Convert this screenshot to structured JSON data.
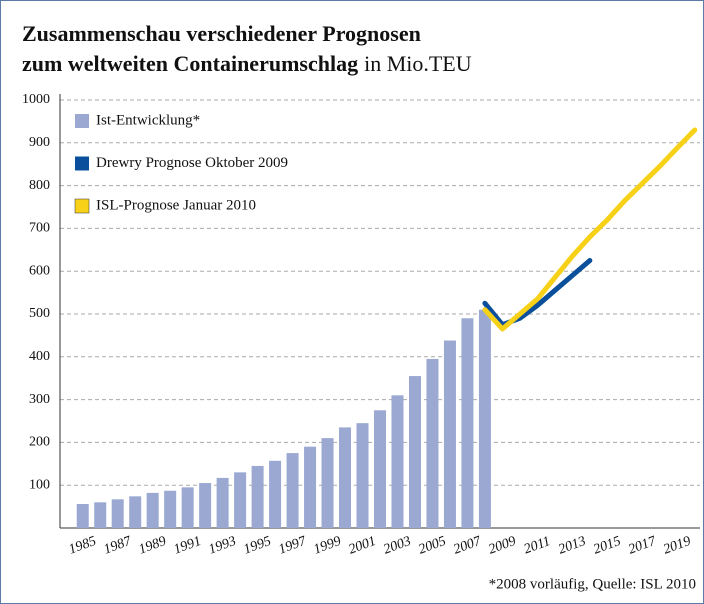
{
  "chart_data": {
    "type": "bar",
    "title_line1": "Zusammenschau verschiedener Prognosen",
    "title_line2": "zum weltweiten Containerumschlag",
    "unit": "in Mio.TEU",
    "footnote": "*2008 vorläufig, Quelle: ISL 2010",
    "xlim": [
      1983.7,
      2020.3
    ],
    "xticks": [
      1985,
      1987,
      1989,
      1991,
      1993,
      1995,
      1997,
      1999,
      2001,
      2003,
      2005,
      2007,
      2009,
      2011,
      2013,
      2015,
      2017,
      2019
    ],
    "ylim": [
      0,
      1000
    ],
    "yticks": [
      100,
      200,
      300,
      400,
      500,
      600,
      700,
      800,
      900,
      1000
    ],
    "grid": true,
    "legend": "top-left",
    "series": [
      {
        "name": "Ist-Entwicklung*",
        "type": "bar",
        "color": "#9aa8d2",
        "x": [
          1985,
          1986,
          1987,
          1988,
          1989,
          1990,
          1991,
          1992,
          1993,
          1994,
          1995,
          1996,
          1997,
          1998,
          1999,
          2000,
          2001,
          2002,
          2003,
          2004,
          2005,
          2006,
          2007,
          2008
        ],
        "values": [
          56,
          60,
          67,
          74,
          82,
          87,
          95,
          105,
          117,
          130,
          145,
          157,
          175,
          190,
          210,
          235,
          245,
          275,
          310,
          355,
          395,
          438,
          490,
          510
        ]
      },
      {
        "name": "Drewry Prognose Oktober 2009",
        "type": "line",
        "color": "#0a4f9c",
        "x": [
          2008,
          2009,
          2010,
          2011,
          2012,
          2013,
          2014
        ],
        "values": [
          525,
          475,
          490,
          520,
          555,
          590,
          625
        ]
      },
      {
        "name": "ISL-Prognose Januar 2010",
        "type": "line",
        "color": "#f7d117",
        "x": [
          2008,
          2009,
          2010,
          2011,
          2012,
          2013,
          2014,
          2015,
          2016,
          2017,
          2018,
          2019,
          2020
        ],
        "values": [
          510,
          465,
          500,
          535,
          585,
          635,
          680,
          720,
          765,
          805,
          845,
          888,
          930
        ]
      }
    ]
  }
}
